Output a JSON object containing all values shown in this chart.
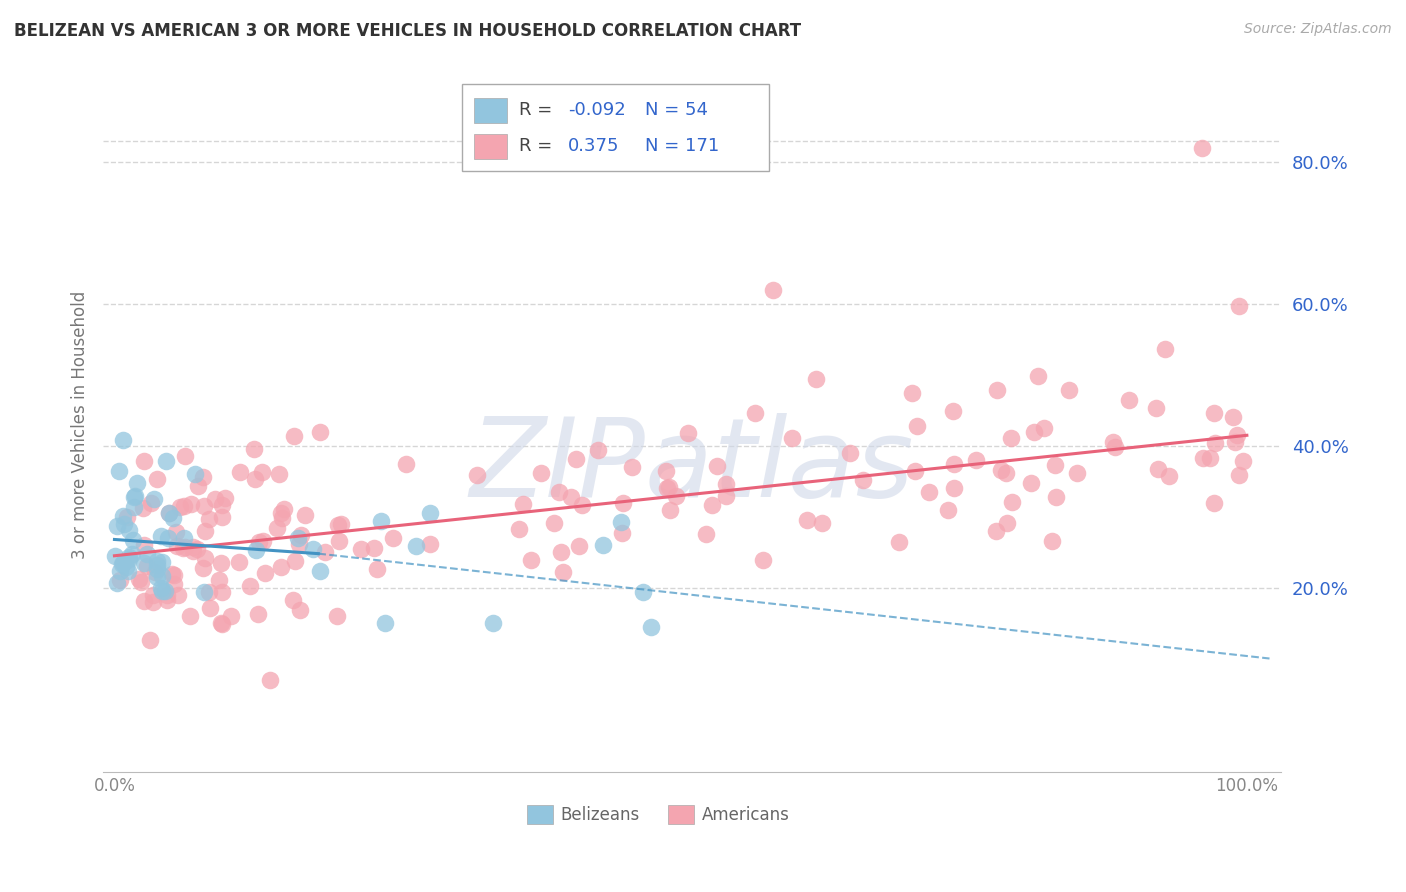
{
  "title": "BELIZEAN VS AMERICAN 3 OR MORE VEHICLES IN HOUSEHOLD CORRELATION CHART",
  "source": "Source: ZipAtlas.com",
  "ylabel": "3 or more Vehicles in Household",
  "watermark": "ZIPatlas",
  "belizean_R": -0.092,
  "belizean_N": 54,
  "american_R": 0.375,
  "american_N": 171,
  "xlim": [
    -0.01,
    1.03
  ],
  "ylim": [
    -0.06,
    0.92
  ],
  "ytick_vals": [
    0.2,
    0.4,
    0.6,
    0.8
  ],
  "ytick_labels": [
    "20.0%",
    "40.0%",
    "60.0%",
    "80.0%"
  ],
  "belizean_color": "#92c5de",
  "belizean_line_color": "#4393c3",
  "american_color": "#f4a5b0",
  "american_line_color": "#e8637a",
  "legend_R_color": "#3366cc",
  "background_color": "#ffffff",
  "grid_color": "#cccccc",
  "am_trend_x0": 0.0,
  "am_trend_y0": 0.245,
  "am_trend_x1": 1.0,
  "am_trend_y1": 0.415,
  "bel_trend_solid_x0": 0.0,
  "bel_trend_solid_y0": 0.268,
  "bel_trend_solid_x1": 0.18,
  "bel_trend_solid_y1": 0.248,
  "bel_trend_dash_x0": 0.18,
  "bel_trend_dash_y0": 0.248,
  "bel_trend_dash_x1": 1.02,
  "bel_trend_dash_y1": 0.1
}
